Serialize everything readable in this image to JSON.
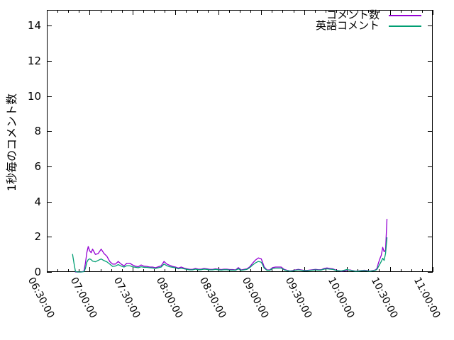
{
  "colors": {
    "background": "#ffffff",
    "frame": "#000000",
    "text": "#000000",
    "series1": "#9400d3",
    "series2": "#009e73"
  },
  "chart_data": {
    "type": "line",
    "title": "",
    "xlabel": "",
    "ylabel": "1秒毎のコメント数",
    "grid": false,
    "legend_position": "top-right-inside",
    "x_axis": {
      "unit": "time (HH:MM:SS)",
      "start": "06:30:00",
      "end": "11:00:00",
      "tick_labels": [
        "06:30:00",
        "07:00:00",
        "07:30:00",
        "08:00:00",
        "08:30:00",
        "09:00:00",
        "09:30:00",
        "10:00:00",
        "10:30:00",
        "11:00:00"
      ],
      "major_tick_interval_minutes": 30,
      "minor_tick_interval_minutes": 7.5,
      "range_minutes": [
        0,
        270
      ]
    },
    "y_axis": {
      "ticks": [
        0,
        2,
        4,
        6,
        8,
        10,
        12,
        14
      ],
      "range": [
        0,
        14.9
      ]
    },
    "series": [
      {
        "name": "コメント数",
        "color": "#9400d3",
        "x_unit": "minutes since 06:30:00",
        "points": [
          [
            20,
            0
          ],
          [
            24,
            0
          ],
          [
            26,
            0.05
          ],
          [
            27,
            0.5
          ],
          [
            28,
            1.1
          ],
          [
            29,
            1.45
          ],
          [
            30,
            1.2
          ],
          [
            31,
            1.1
          ],
          [
            32,
            1.3
          ],
          [
            34,
            1.0
          ],
          [
            36,
            1.05
          ],
          [
            38,
            1.3
          ],
          [
            40,
            1.05
          ],
          [
            42,
            0.9
          ],
          [
            44,
            0.6
          ],
          [
            46,
            0.45
          ],
          [
            48,
            0.45
          ],
          [
            50,
            0.6
          ],
          [
            52,
            0.45
          ],
          [
            54,
            0.35
          ],
          [
            56,
            0.5
          ],
          [
            58,
            0.5
          ],
          [
            60,
            0.4
          ],
          [
            62,
            0.33
          ],
          [
            64,
            0.3
          ],
          [
            66,
            0.4
          ],
          [
            68,
            0.33
          ],
          [
            70,
            0.32
          ],
          [
            72,
            0.28
          ],
          [
            74,
            0.28
          ],
          [
            76,
            0.24
          ],
          [
            78,
            0.3
          ],
          [
            80,
            0.35
          ],
          [
            82,
            0.6
          ],
          [
            84,
            0.45
          ],
          [
            86,
            0.38
          ],
          [
            88,
            0.32
          ],
          [
            90,
            0.28
          ],
          [
            92,
            0.22
          ],
          [
            94,
            0.28
          ],
          [
            96,
            0.22
          ],
          [
            98,
            0.18
          ],
          [
            100,
            0.15
          ],
          [
            102,
            0.15
          ],
          [
            104,
            0.2
          ],
          [
            106,
            0.16
          ],
          [
            108,
            0.16
          ],
          [
            110,
            0.2
          ],
          [
            112,
            0.18
          ],
          [
            114,
            0.15
          ],
          [
            116,
            0.15
          ],
          [
            118,
            0.18
          ],
          [
            120,
            0.16
          ],
          [
            122,
            0.14
          ],
          [
            124,
            0.16
          ],
          [
            126,
            0.16
          ],
          [
            128,
            0.14
          ],
          [
            130,
            0.14
          ],
          [
            132,
            0.12
          ],
          [
            133,
            0.18
          ],
          [
            134,
            0.25
          ],
          [
            136,
            0.12
          ],
          [
            138,
            0.15
          ],
          [
            140,
            0.18
          ],
          [
            142,
            0.3
          ],
          [
            144,
            0.5
          ],
          [
            146,
            0.68
          ],
          [
            148,
            0.8
          ],
          [
            150,
            0.75
          ],
          [
            151,
            0.55
          ],
          [
            152,
            0.3
          ],
          [
            154,
            0.12
          ],
          [
            156,
            0.12
          ],
          [
            158,
            0.25
          ],
          [
            160,
            0.28
          ],
          [
            162,
            0.28
          ],
          [
            164,
            0.28
          ],
          [
            166,
            0.15
          ],
          [
            168,
            0.1
          ],
          [
            170,
            0.06
          ],
          [
            172,
            0.08
          ],
          [
            174,
            0.12
          ],
          [
            176,
            0.15
          ],
          [
            178,
            0.12
          ],
          [
            180,
            0.09
          ],
          [
            182,
            0.09
          ],
          [
            184,
            0.11
          ],
          [
            186,
            0.13
          ],
          [
            188,
            0.15
          ],
          [
            190,
            0.13
          ],
          [
            192,
            0.13
          ],
          [
            194,
            0.2
          ],
          [
            196,
            0.23
          ],
          [
            198,
            0.2
          ],
          [
            200,
            0.18
          ],
          [
            202,
            0.12
          ],
          [
            204,
            0.08
          ],
          [
            206,
            0.05
          ],
          [
            208,
            0.06
          ],
          [
            210,
            0.1
          ],
          [
            212,
            0.12
          ],
          [
            214,
            0.08
          ],
          [
            216,
            0.05
          ],
          [
            218,
            0.06
          ],
          [
            220,
            0.08
          ],
          [
            222,
            0.1
          ],
          [
            224,
            0.08
          ],
          [
            226,
            0.05
          ],
          [
            228,
            0.08
          ],
          [
            230,
            0.12
          ],
          [
            231,
            0.2
          ],
          [
            232,
            0.5
          ],
          [
            233,
            0.75
          ],
          [
            234,
            0.95
          ],
          [
            235,
            1.4
          ],
          [
            236,
            1.15
          ],
          [
            237,
            1.25
          ],
          [
            238,
            3.0
          ]
        ]
      },
      {
        "name": "英語コメント",
        "color": "#009e73",
        "x_unit": "minutes since 06:30:00",
        "points": [
          [
            18,
            1.0
          ],
          [
            19,
            0.5
          ],
          [
            20,
            0.05
          ],
          [
            21,
            0
          ],
          [
            24,
            0
          ],
          [
            26,
            0.02
          ],
          [
            27,
            0.2
          ],
          [
            28,
            0.55
          ],
          [
            29,
            0.7
          ],
          [
            30,
            0.75
          ],
          [
            31,
            0.7
          ],
          [
            32,
            0.62
          ],
          [
            34,
            0.58
          ],
          [
            36,
            0.66
          ],
          [
            38,
            0.74
          ],
          [
            40,
            0.65
          ],
          [
            42,
            0.58
          ],
          [
            44,
            0.45
          ],
          [
            46,
            0.32
          ],
          [
            48,
            0.34
          ],
          [
            50,
            0.42
          ],
          [
            52,
            0.34
          ],
          [
            54,
            0.28
          ],
          [
            56,
            0.36
          ],
          [
            58,
            0.36
          ],
          [
            60,
            0.3
          ],
          [
            62,
            0.27
          ],
          [
            64,
            0.24
          ],
          [
            66,
            0.3
          ],
          [
            68,
            0.27
          ],
          [
            70,
            0.26
          ],
          [
            72,
            0.24
          ],
          [
            74,
            0.23
          ],
          [
            76,
            0.2
          ],
          [
            78,
            0.24
          ],
          [
            80,
            0.28
          ],
          [
            82,
            0.45
          ],
          [
            84,
            0.36
          ],
          [
            86,
            0.3
          ],
          [
            88,
            0.27
          ],
          [
            90,
            0.24
          ],
          [
            92,
            0.18
          ],
          [
            94,
            0.22
          ],
          [
            96,
            0.18
          ],
          [
            98,
            0.15
          ],
          [
            100,
            0.12
          ],
          [
            102,
            0.12
          ],
          [
            104,
            0.16
          ],
          [
            106,
            0.13
          ],
          [
            108,
            0.13
          ],
          [
            110,
            0.16
          ],
          [
            112,
            0.15
          ],
          [
            114,
            0.12
          ],
          [
            116,
            0.12
          ],
          [
            118,
            0.15
          ],
          [
            120,
            0.13
          ],
          [
            122,
            0.11
          ],
          [
            124,
            0.13
          ],
          [
            126,
            0.13
          ],
          [
            128,
            0.11
          ],
          [
            130,
            0.11
          ],
          [
            132,
            0.1
          ],
          [
            133,
            0.14
          ],
          [
            134,
            0.18
          ],
          [
            136,
            0.1
          ],
          [
            138,
            0.12
          ],
          [
            140,
            0.15
          ],
          [
            142,
            0.25
          ],
          [
            144,
            0.4
          ],
          [
            146,
            0.52
          ],
          [
            148,
            0.6
          ],
          [
            150,
            0.56
          ],
          [
            151,
            0.42
          ],
          [
            152,
            0.22
          ],
          [
            154,
            0.1
          ],
          [
            156,
            0.1
          ],
          [
            158,
            0.2
          ],
          [
            160,
            0.22
          ],
          [
            162,
            0.22
          ],
          [
            164,
            0.22
          ],
          [
            166,
            0.12
          ],
          [
            168,
            0.08
          ],
          [
            170,
            0.05
          ],
          [
            172,
            0.06
          ],
          [
            174,
            0.1
          ],
          [
            176,
            0.12
          ],
          [
            178,
            0.1
          ],
          [
            180,
            0.07
          ],
          [
            182,
            0.07
          ],
          [
            184,
            0.09
          ],
          [
            186,
            0.11
          ],
          [
            188,
            0.12
          ],
          [
            190,
            0.11
          ],
          [
            192,
            0.11
          ],
          [
            194,
            0.16
          ],
          [
            196,
            0.18
          ],
          [
            198,
            0.16
          ],
          [
            200,
            0.15
          ],
          [
            202,
            0.1
          ],
          [
            204,
            0.07
          ],
          [
            206,
            0.06
          ],
          [
            208,
            0.1
          ],
          [
            210,
            0.14
          ],
          [
            212,
            0.1
          ],
          [
            214,
            0.07
          ],
          [
            216,
            0.04
          ],
          [
            218,
            0.05
          ],
          [
            220,
            0.07
          ],
          [
            222,
            0.08
          ],
          [
            224,
            0.06
          ],
          [
            226,
            0.04
          ],
          [
            228,
            0.07
          ],
          [
            230,
            0.1
          ],
          [
            231,
            0.15
          ],
          [
            232,
            0.3
          ],
          [
            233,
            0.45
          ],
          [
            234,
            0.6
          ],
          [
            235,
            0.78
          ],
          [
            236,
            0.66
          ],
          [
            237,
            1.05
          ],
          [
            238,
            1.95
          ]
        ]
      }
    ]
  }
}
